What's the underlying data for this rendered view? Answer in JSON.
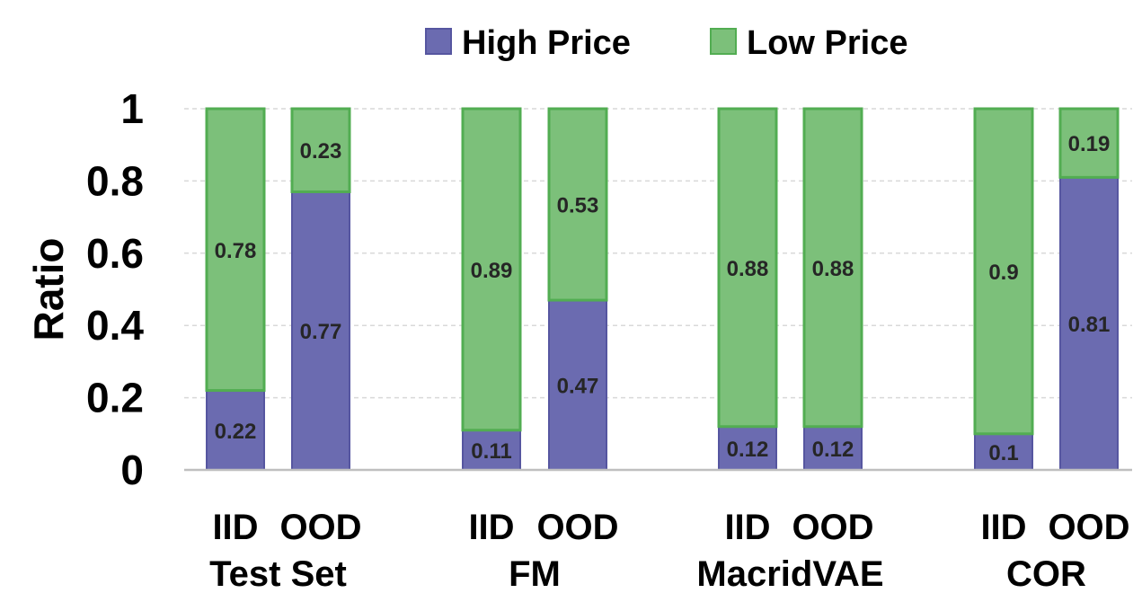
{
  "chart_data": {
    "type": "bar",
    "stacked": true,
    "ylabel": "Ratio",
    "ylim": [
      0,
      1
    ],
    "yticks": [
      "0",
      "0.2",
      "0.4",
      "0.6",
      "0.8",
      "1"
    ],
    "grid": true,
    "legend_position": "top",
    "groups": [
      "Test Set",
      "FM",
      "MacridVAE",
      "COR"
    ],
    "categories": [
      "IID",
      "OOD",
      "IID",
      "OOD",
      "IID",
      "OOD",
      "IID",
      "OOD"
    ],
    "series": [
      {
        "name": "High Price",
        "color": "#6b6bb0",
        "values": [
          0.22,
          0.77,
          0.11,
          0.47,
          0.12,
          0.12,
          0.1,
          0.81
        ],
        "labels": [
          "0.22",
          "0.77",
          "0.11",
          "0.47",
          "0.12",
          "0.12",
          "0.1",
          "0.81"
        ]
      },
      {
        "name": "Low Price",
        "color": "#7cc07a",
        "values": [
          0.78,
          0.23,
          0.89,
          0.53,
          0.88,
          0.88,
          0.9,
          0.19
        ],
        "labels": [
          "0.78",
          "0.23",
          "0.89",
          "0.53",
          "0.88",
          "0.88",
          "0.9",
          "0.19"
        ]
      }
    ]
  },
  "colors": {
    "high_fill": "#6b6bb0",
    "high_edge": "#5656a0",
    "low_fill": "#7cc07a",
    "low_edge": "#52ad52",
    "grid": "#d9d9d9",
    "axis": "#bfbfbf"
  }
}
